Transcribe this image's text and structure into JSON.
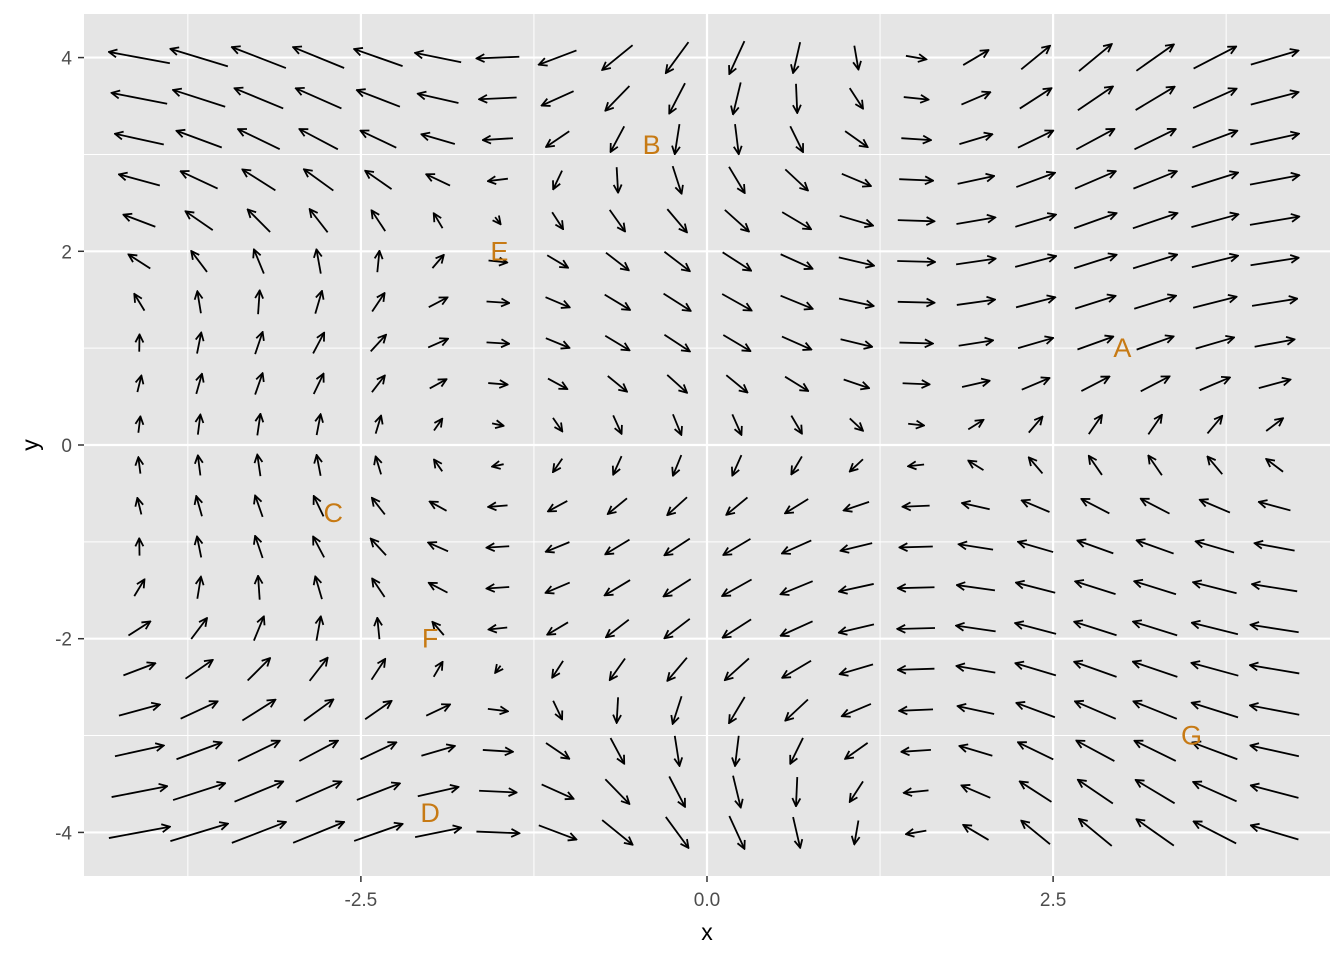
{
  "chart_data": {
    "type": "vector_field",
    "xlabel": "x",
    "ylabel": "y",
    "xlim": [
      -4.5,
      4.5
    ],
    "ylim": [
      -4.45,
      4.45
    ],
    "x_ticks": [
      -2.5,
      0.0,
      2.5
    ],
    "x_tick_labels": [
      "-2.5",
      "0.0",
      "2.5"
    ],
    "y_ticks": [
      -4,
      -2,
      0,
      2,
      4
    ],
    "y_tick_labels": [
      "-4",
      "-2",
      "0",
      "2",
      "4"
    ],
    "x_minor": [
      -3.75,
      -1.25,
      1.25,
      3.75
    ],
    "y_minor": [
      -3,
      -1,
      1,
      3
    ],
    "grid": true,
    "panel_color": "#e5e5e5",
    "grid_color": "#ffffff",
    "arrow_color": "#000000",
    "label_color": "#c77a14",
    "field": {
      "x_range": [
        -4.1,
        4.1
      ],
      "y_range": [
        -4.0,
        4.0
      ],
      "nx": 20,
      "ny": 20,
      "dx_expr": "sin(y) + 0.2*y*x",
      "dy_expr": "-0.5*cos(x) * ..."
    },
    "labels": [
      {
        "text": "A",
        "x": 3.0,
        "y": 1.0
      },
      {
        "text": "B",
        "x": -0.4,
        "y": 3.1
      },
      {
        "text": "C",
        "x": -2.7,
        "y": -0.7
      },
      {
        "text": "D",
        "x": -2.0,
        "y": -3.8
      },
      {
        "text": "E",
        "x": -1.5,
        "y": 2.0
      },
      {
        "text": "F",
        "x": -2.0,
        "y": -2.0
      },
      {
        "text": "G",
        "x": 3.5,
        "y": -3.0
      }
    ]
  }
}
